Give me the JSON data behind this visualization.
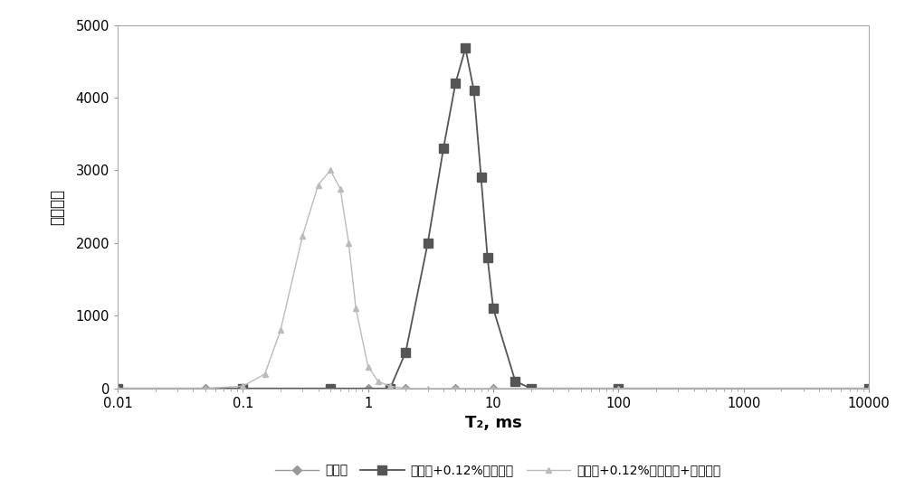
{
  "series": [
    {
      "label": "钻井液",
      "x": [
        0.01,
        0.05,
        0.1,
        0.5,
        1.0,
        2.0,
        5.0,
        10.0,
        100.0,
        10000.0
      ],
      "y": [
        0,
        0,
        0,
        0,
        0,
        0,
        0,
        0,
        0,
        0
      ],
      "color": "#999999",
      "marker": "D",
      "markersize": 5,
      "linewidth": 1.0
    },
    {
      "label": "钻井液+0.12%磺化褐煤",
      "x": [
        0.01,
        0.1,
        0.5,
        1.5,
        2.0,
        3.0,
        4.0,
        5.0,
        6.0,
        7.0,
        8.0,
        9.0,
        10.0,
        15.0,
        20.0,
        100.0,
        10000.0
      ],
      "y": [
        0,
        0,
        0,
        0,
        500,
        2000,
        3300,
        4200,
        4680,
        4100,
        2900,
        1800,
        1100,
        100,
        0,
        0,
        0
      ],
      "color": "#555555",
      "marker": "s",
      "markersize": 7,
      "linewidth": 1.3
    },
    {
      "label": "钻井液+0.12%磺化褐煤+弛豫试剂",
      "x": [
        0.01,
        0.05,
        0.1,
        0.15,
        0.2,
        0.3,
        0.4,
        0.5,
        0.6,
        0.7,
        0.8,
        1.0,
        1.2,
        1.5,
        2.0,
        3.0,
        5.0,
        10.0,
        100.0,
        10000.0
      ],
      "y": [
        0,
        0,
        30,
        200,
        800,
        2100,
        2800,
        3000,
        2750,
        2000,
        1100,
        300,
        100,
        30,
        0,
        0,
        0,
        0,
        0,
        0
      ],
      "color": "#bbbbbb",
      "marker": "^",
      "markersize": 5,
      "linewidth": 1.0
    }
  ],
  "xlabel": "T₂, ms",
  "ylabel": "信号幅度",
  "xlim": [
    0.01,
    10000
  ],
  "ylim": [
    0,
    5000
  ],
  "yticks": [
    0,
    1000,
    2000,
    3000,
    4000,
    5000
  ],
  "xticks": [
    0.01,
    0.1,
    1,
    10,
    100,
    1000,
    10000
  ],
  "legend_ncol": 3,
  "figsize": [
    10.0,
    5.51
  ],
  "dpi": 100,
  "bg_color": "#ffffff"
}
